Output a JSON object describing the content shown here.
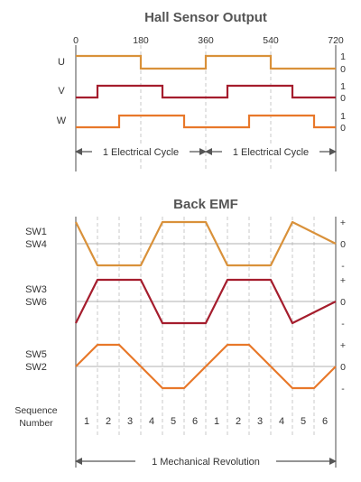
{
  "colors": {
    "U": "#d9913a",
    "V": "#a51d2d",
    "W": "#e8782a",
    "axis": "#777777",
    "dash": "#c8c8c8",
    "text": "#333333",
    "title": "#555555"
  },
  "hall": {
    "title": "Hall Sensor Output",
    "angle_ticks": [
      0,
      180,
      360,
      540,
      720
    ],
    "cycle_label": "1 Electrical Cycle",
    "signals": [
      {
        "name": "U",
        "level_high": "1",
        "level_low": "0",
        "transitions": [
          0,
          180,
          360,
          540,
          720
        ],
        "levels": [
          1,
          0,
          1,
          0
        ]
      },
      {
        "name": "V",
        "level_high": "1",
        "level_low": "0",
        "transitions": [
          0,
          60,
          240,
          420,
          600,
          720
        ],
        "levels": [
          0,
          1,
          0,
          1,
          0
        ]
      },
      {
        "name": "W",
        "level_high": "1",
        "level_low": "0",
        "transitions": [
          0,
          120,
          300,
          480,
          660,
          720
        ],
        "levels": [
          0,
          1,
          0,
          1,
          0
        ]
      }
    ]
  },
  "emf": {
    "title": "Back EMF",
    "step_deg": 60,
    "traces": [
      {
        "labels": [
          "SW1",
          "SW4"
        ],
        "marks": [
          "+",
          "0",
          "-"
        ],
        "levels": [
          1,
          -1,
          -1,
          1,
          1,
          -1,
          -1,
          1
        ]
      },
      {
        "labels": [
          "SW3",
          "SW6"
        ],
        "marks": [
          "+",
          "0",
          "-"
        ],
        "levels": [
          -1,
          1,
          1,
          -1,
          -1,
          1,
          1,
          -1
        ]
      },
      {
        "labels": [
          "SW5",
          "SW2"
        ],
        "marks": [
          "+",
          "0",
          "-"
        ],
        "levels": [
          0,
          1,
          1,
          -1,
          -1,
          1,
          1,
          -1,
          -1,
          0
        ]
      }
    ],
    "sequence_label": [
      "Sequence",
      "Number"
    ],
    "sequence": [
      "1",
      "2",
      "3",
      "4",
      "5",
      "6",
      "1",
      "2",
      "3",
      "4",
      "5",
      "6"
    ],
    "revolution_label": "1 Mechanical Revolution"
  }
}
